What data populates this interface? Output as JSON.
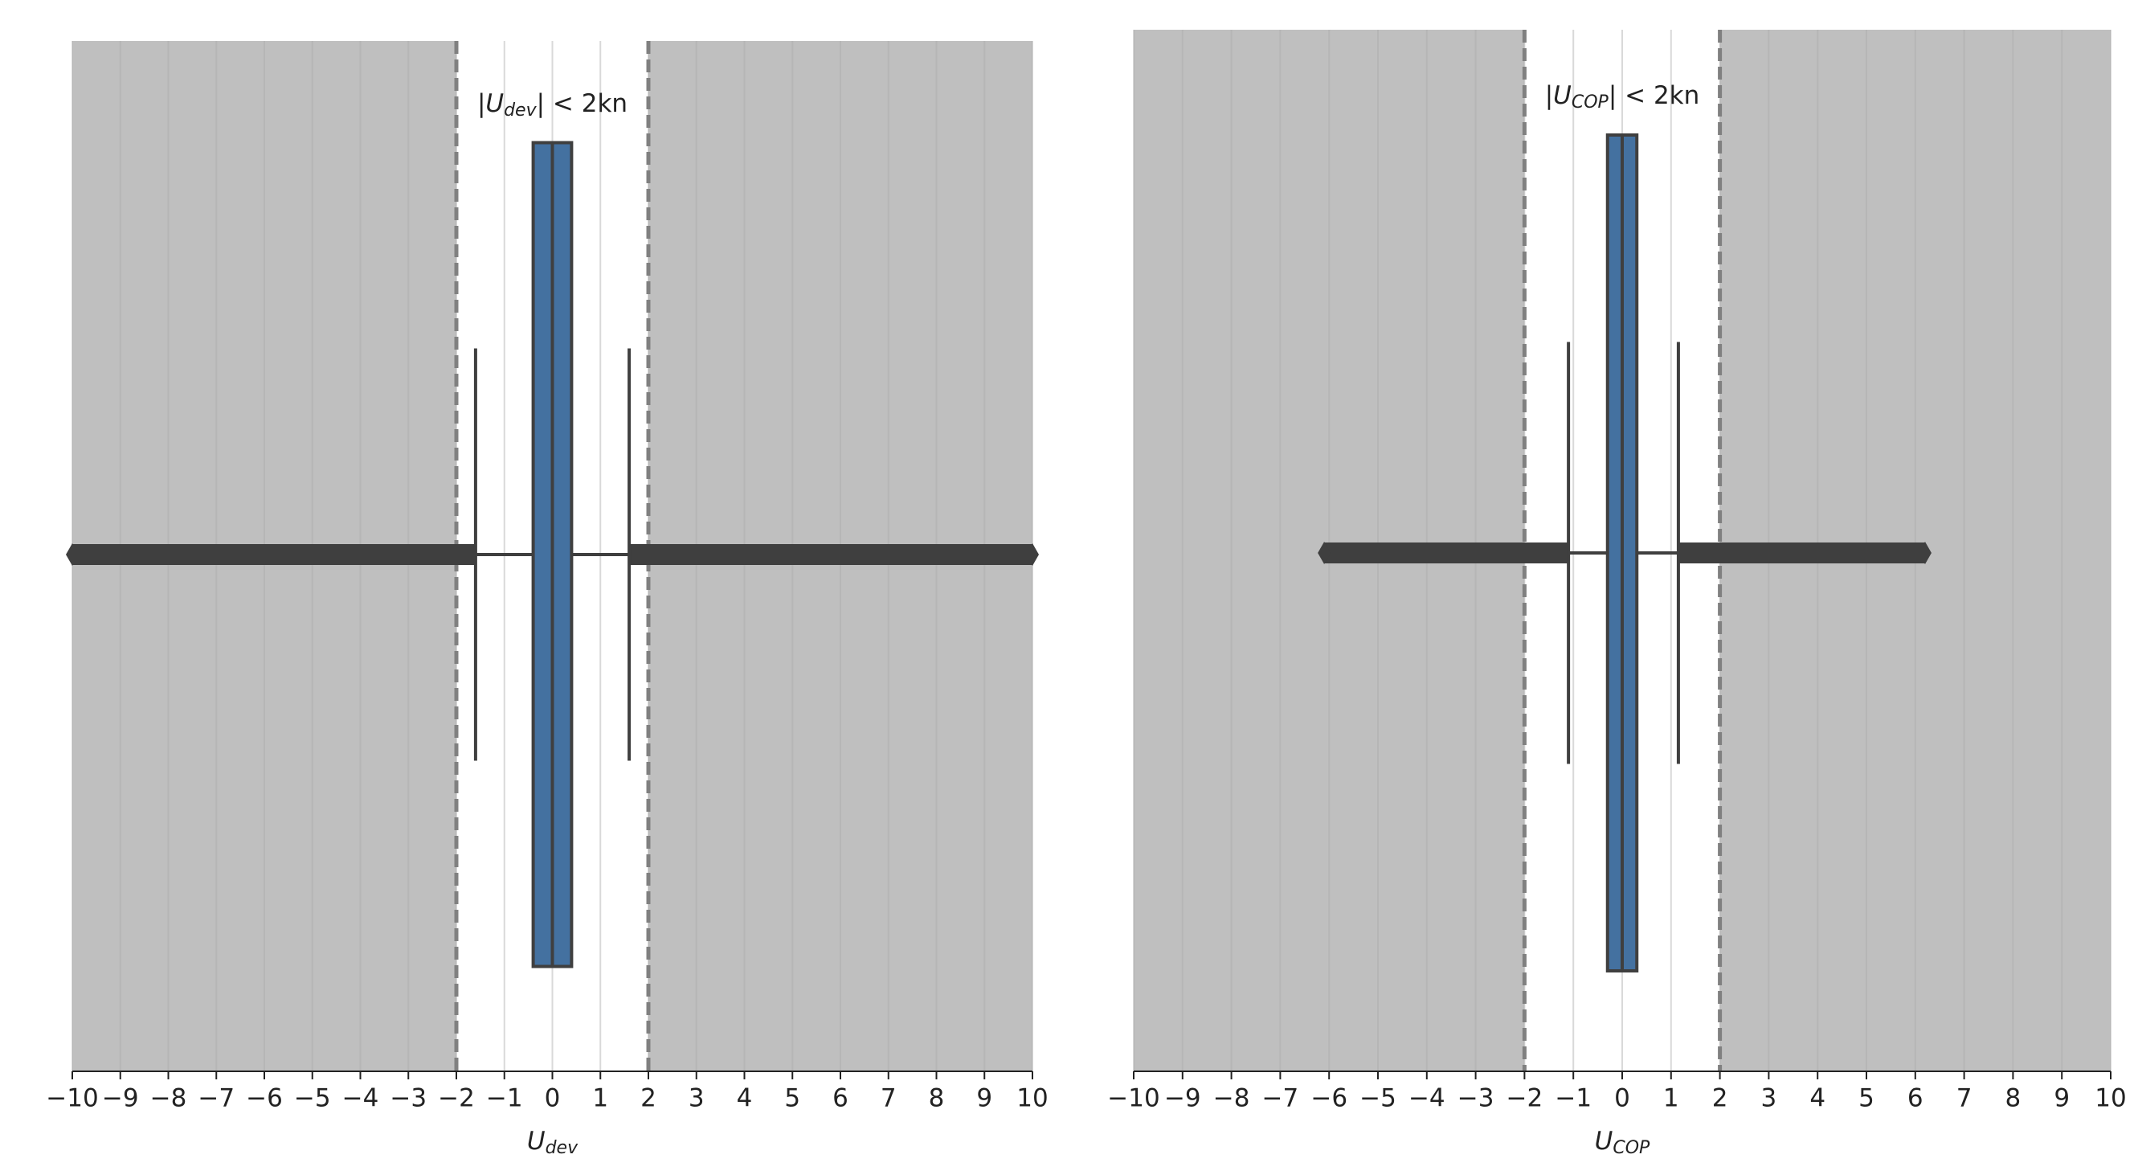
{
  "chart_data": [
    {
      "type": "box",
      "annotation": {
        "prefix": "|U",
        "sub": "dev",
        "suffix": "| < 2kn"
      },
      "xlabel": {
        "main": "U",
        "sub": "dev"
      },
      "xlim": [
        -10,
        10
      ],
      "xticks": [
        {
          "value": -10,
          "label": "−10"
        },
        {
          "value": -9,
          "label": "−9"
        },
        {
          "value": -8,
          "label": "−8"
        },
        {
          "value": -7,
          "label": "−7"
        },
        {
          "value": -6,
          "label": "−6"
        },
        {
          "value": -5,
          "label": "−5"
        },
        {
          "value": -4,
          "label": "−4"
        },
        {
          "value": -3,
          "label": "−3"
        },
        {
          "value": -2,
          "label": "−2"
        },
        {
          "value": -1,
          "label": "−1"
        },
        0,
        1,
        2,
        3,
        4,
        5,
        6,
        7,
        8,
        9,
        10
      ],
      "grid": true,
      "thresholds": [
        -2,
        2
      ],
      "shade_color": "#bfbfbf",
      "color": "#4471a0",
      "box": {
        "whisker_low": -1.6,
        "q1": -0.4,
        "median": 0,
        "q3": 0.4,
        "whisker_high": 1.6,
        "outlier_min": -10,
        "outlier_max": 10
      }
    },
    {
      "type": "box",
      "annotation": {
        "prefix": "|U",
        "sub": "COP",
        "suffix": "| < 2kn"
      },
      "xlabel": {
        "main": "U",
        "sub": "COP"
      },
      "xlim": [
        -10,
        10
      ],
      "xticks": [
        {
          "value": -10,
          "label": "−10"
        },
        {
          "value": -9,
          "label": "−9"
        },
        {
          "value": -8,
          "label": "−8"
        },
        {
          "value": -7,
          "label": "−7"
        },
        {
          "value": -6,
          "label": "−6"
        },
        {
          "value": -5,
          "label": "−5"
        },
        {
          "value": -4,
          "label": "−4"
        },
        {
          "value": -3,
          "label": "−3"
        },
        {
          "value": -2,
          "label": "−2"
        },
        {
          "value": -1,
          "label": "−1"
        },
        0,
        1,
        2,
        3,
        4,
        5,
        6,
        7,
        8,
        9,
        10
      ],
      "grid": true,
      "thresholds": [
        -2,
        2
      ],
      "shade_color": "#bfbfbf",
      "color": "#4471a0",
      "box": {
        "whisker_low": -1.1,
        "q1": -0.3,
        "median": 0,
        "q3": 0.3,
        "whisker_high": 1.15,
        "outlier_min": -6.1,
        "outlier_max": 6.2
      }
    }
  ]
}
